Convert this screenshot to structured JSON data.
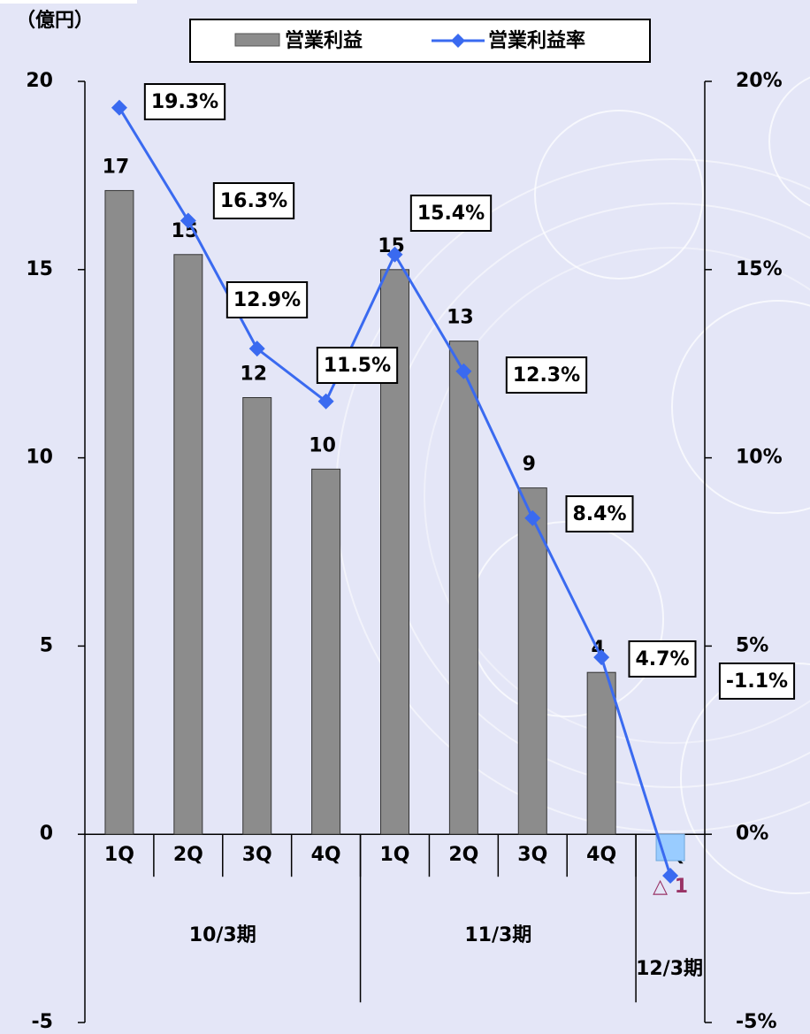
{
  "chart_data": {
    "type": "bar_line",
    "y_unit_label": "（億円）",
    "categories": [
      "1Q",
      "2Q",
      "3Q",
      "4Q",
      "1Q",
      "2Q",
      "3Q",
      "4Q",
      "1Q"
    ],
    "category_groups": [
      "10/3期",
      "11/3期",
      "12/3期"
    ],
    "series": [
      {
        "name": "営業利益",
        "type": "bar",
        "color": "#8c8c8c",
        "negative_color": "#99ccff",
        "values": [
          17.1,
          15.4,
          11.6,
          9.7,
          15.0,
          13.1,
          9.2,
          4.3,
          -0.7
        ],
        "value_labels": [
          "17",
          "15",
          "12",
          "10",
          "15",
          "13",
          "9",
          "4",
          "△ 1"
        ]
      },
      {
        "name": "営業利益率",
        "type": "line",
        "axis": "y2",
        "color": "#3a6af0",
        "values": [
          19.3,
          16.3,
          12.9,
          11.5,
          15.4,
          12.3,
          8.4,
          4.7,
          -1.1
        ],
        "value_labels": [
          "19.3%",
          "16.3%",
          "12.9%",
          "11.5%",
          "15.4%",
          "12.3%",
          "8.4%",
          "4.7%",
          "-1.1%"
        ]
      }
    ],
    "ylim": [
      -5,
      20
    ],
    "yticks": [
      -5,
      0,
      5,
      10,
      15,
      20
    ],
    "y2lim": [
      -5,
      20
    ],
    "y2ticks": [
      {
        "value": -5,
        "label": "-5%"
      },
      {
        "value": 0,
        "label": "0%"
      },
      {
        "value": 5,
        "label": "5%"
      },
      {
        "value": 10,
        "label": "10%"
      },
      {
        "value": 15,
        "label": "15%"
      },
      {
        "value": 20,
        "label": "20%"
      }
    ]
  }
}
